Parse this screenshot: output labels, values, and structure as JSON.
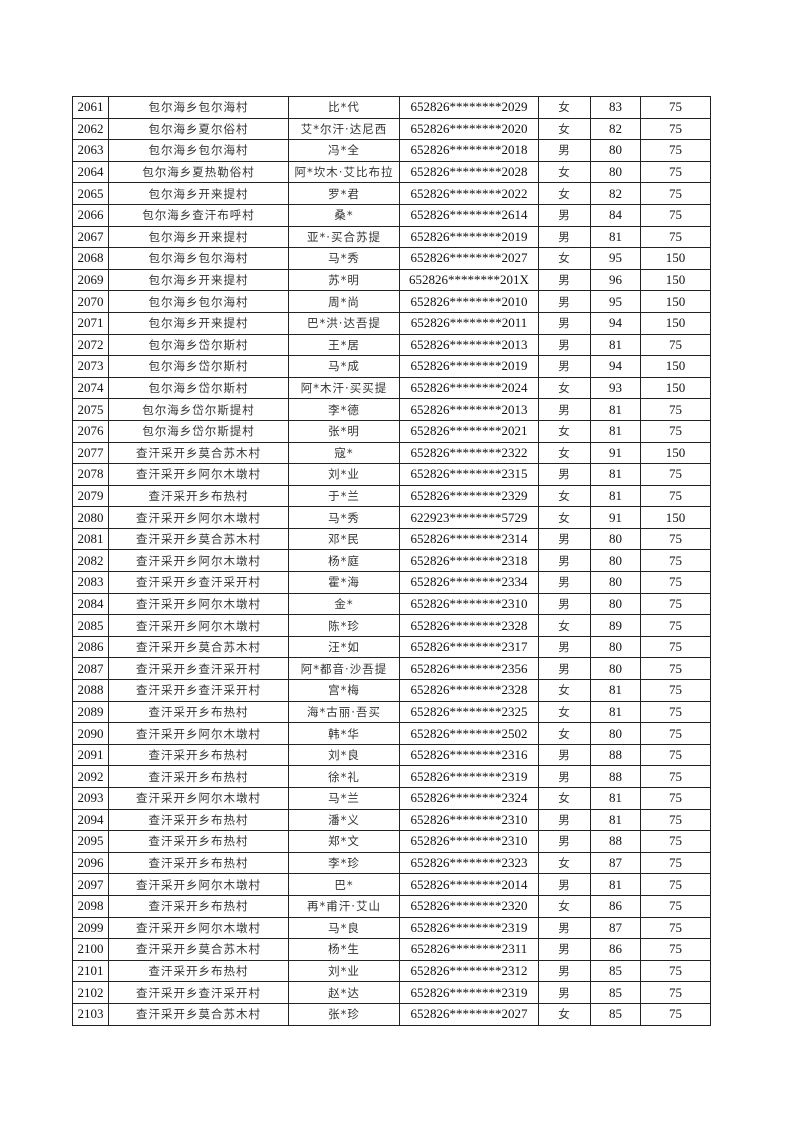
{
  "table": {
    "rows": [
      [
        "2061",
        "包尔海乡包尔海村",
        "比*代",
        "652826********2029",
        "女",
        "83",
        "75"
      ],
      [
        "2062",
        "包尔海乡夏尔俗村",
        "艾*尔汗·达尼西",
        "652826********2020",
        "女",
        "82",
        "75"
      ],
      [
        "2063",
        "包尔海乡包尔海村",
        "冯*全",
        "652826********2018",
        "男",
        "80",
        "75"
      ],
      [
        "2064",
        "包尔海乡夏热勒俗村",
        "阿*坎木·艾比布拉",
        "652826********2028",
        "女",
        "80",
        "75"
      ],
      [
        "2065",
        "包尔海乡开来提村",
        "罗*君",
        "652826********2022",
        "女",
        "82",
        "75"
      ],
      [
        "2066",
        "包尔海乡查汗布呼村",
        "桑*",
        "652826********2614",
        "男",
        "84",
        "75"
      ],
      [
        "2067",
        "包尔海乡开来提村",
        "亚*·买合苏提",
        "652826********2019",
        "男",
        "81",
        "75"
      ],
      [
        "2068",
        "包尔海乡包尔海村",
        "马*秀",
        "652826********2027",
        "女",
        "95",
        "150"
      ],
      [
        "2069",
        "包尔海乡开来提村",
        "苏*明",
        "652826********201X",
        "男",
        "96",
        "150"
      ],
      [
        "2070",
        "包尔海乡包尔海村",
        "周*尚",
        "652826********2010",
        "男",
        "95",
        "150"
      ],
      [
        "2071",
        "包尔海乡开来提村",
        "巴*洪·达吾提",
        "652826********2011",
        "男",
        "94",
        "150"
      ],
      [
        "2072",
        "包尔海乡岱尔斯村",
        "王*居",
        "652826********2013",
        "男",
        "81",
        "75"
      ],
      [
        "2073",
        "包尔海乡岱尔斯村",
        "马*成",
        "652826********2019",
        "男",
        "94",
        "150"
      ],
      [
        "2074",
        "包尔海乡岱尔斯村",
        "阿*木汗·买买提",
        "652826********2024",
        "女",
        "93",
        "150"
      ],
      [
        "2075",
        "包尔海乡岱尔斯提村",
        "李*德",
        "652826********2013",
        "男",
        "81",
        "75"
      ],
      [
        "2076",
        "包尔海乡岱尔斯提村",
        "张*明",
        "652826********2021",
        "女",
        "81",
        "75"
      ],
      [
        "2077",
        "查汗采开乡莫合苏木村",
        "寇*",
        "652826********2322",
        "女",
        "91",
        "150"
      ],
      [
        "2078",
        "查汗采开乡阿尔木墩村",
        "刘*业",
        "652826********2315",
        "男",
        "81",
        "75"
      ],
      [
        "2079",
        "查汗采开乡布热村",
        "于*兰",
        "652826********2329",
        "女",
        "81",
        "75"
      ],
      [
        "2080",
        "查汗采开乡阿尔木墩村",
        "马*秀",
        "622923********5729",
        "女",
        "91",
        "150"
      ],
      [
        "2081",
        "查汗采开乡莫合苏木村",
        "邓*民",
        "652826********2314",
        "男",
        "80",
        "75"
      ],
      [
        "2082",
        "查汗采开乡阿尔木墩村",
        "杨*庭",
        "652826********2318",
        "男",
        "80",
        "75"
      ],
      [
        "2083",
        "查汗采开乡查汗采开村",
        "霍*海",
        "652826********2334",
        "男",
        "80",
        "75"
      ],
      [
        "2084",
        "查汗采开乡阿尔木墩村",
        "金*",
        "652826********2310",
        "男",
        "80",
        "75"
      ],
      [
        "2085",
        "查汗采开乡阿尔木墩村",
        "陈*珍",
        "652826********2328",
        "女",
        "89",
        "75"
      ],
      [
        "2086",
        "查汗采开乡莫合苏木村",
        "汪*如",
        "652826********2317",
        "男",
        "80",
        "75"
      ],
      [
        "2087",
        "查汗采开乡查汗采开村",
        "阿*都音·沙吾提",
        "652826********2356",
        "男",
        "80",
        "75"
      ],
      [
        "2088",
        "查汗采开乡查汗采开村",
        "宫*梅",
        "652826********2328",
        "女",
        "81",
        "75"
      ],
      [
        "2089",
        "查汗采开乡布热村",
        "海*古丽·吾买",
        "652826********2325",
        "女",
        "81",
        "75"
      ],
      [
        "2090",
        "查汗采开乡阿尔木墩村",
        "韩*华",
        "652826********2502",
        "女",
        "80",
        "75"
      ],
      [
        "2091",
        "查汗采开乡布热村",
        "刘*良",
        "652826********2316",
        "男",
        "88",
        "75"
      ],
      [
        "2092",
        "查汗采开乡布热村",
        "徐*礼",
        "652826********2319",
        "男",
        "88",
        "75"
      ],
      [
        "2093",
        "查汗采开乡阿尔木墩村",
        "马*兰",
        "652826********2324",
        "女",
        "81",
        "75"
      ],
      [
        "2094",
        "查汗采开乡布热村",
        "潘*义",
        "652826********2310",
        "男",
        "81",
        "75"
      ],
      [
        "2095",
        "查汗采开乡布热村",
        "郑*文",
        "652826********2310",
        "男",
        "88",
        "75"
      ],
      [
        "2096",
        "查汗采开乡布热村",
        "李*珍",
        "652826********2323",
        "女",
        "87",
        "75"
      ],
      [
        "2097",
        "查汗采开乡阿尔木墩村",
        "巴*",
        "652826********2014",
        "男",
        "81",
        "75"
      ],
      [
        "2098",
        "查汗采开乡布热村",
        "再*甫汗·艾山",
        "652826********2320",
        "女",
        "86",
        "75"
      ],
      [
        "2099",
        "查汗采开乡阿尔木墩村",
        "马*良",
        "652826********2319",
        "男",
        "87",
        "75"
      ],
      [
        "2100",
        "查汗采开乡莫合苏木村",
        "杨*生",
        "652826********2311",
        "男",
        "86",
        "75"
      ],
      [
        "2101",
        "查汗采开乡布热村",
        "刘*业",
        "652826********2312",
        "男",
        "85",
        "75"
      ],
      [
        "2102",
        "查汗采开乡查汗采开村",
        "赵*达",
        "652826********2319",
        "男",
        "85",
        "75"
      ],
      [
        "2103",
        "查汗采开乡莫合苏木村",
        "张*珍",
        "652826********2027",
        "女",
        "85",
        "75"
      ]
    ]
  }
}
